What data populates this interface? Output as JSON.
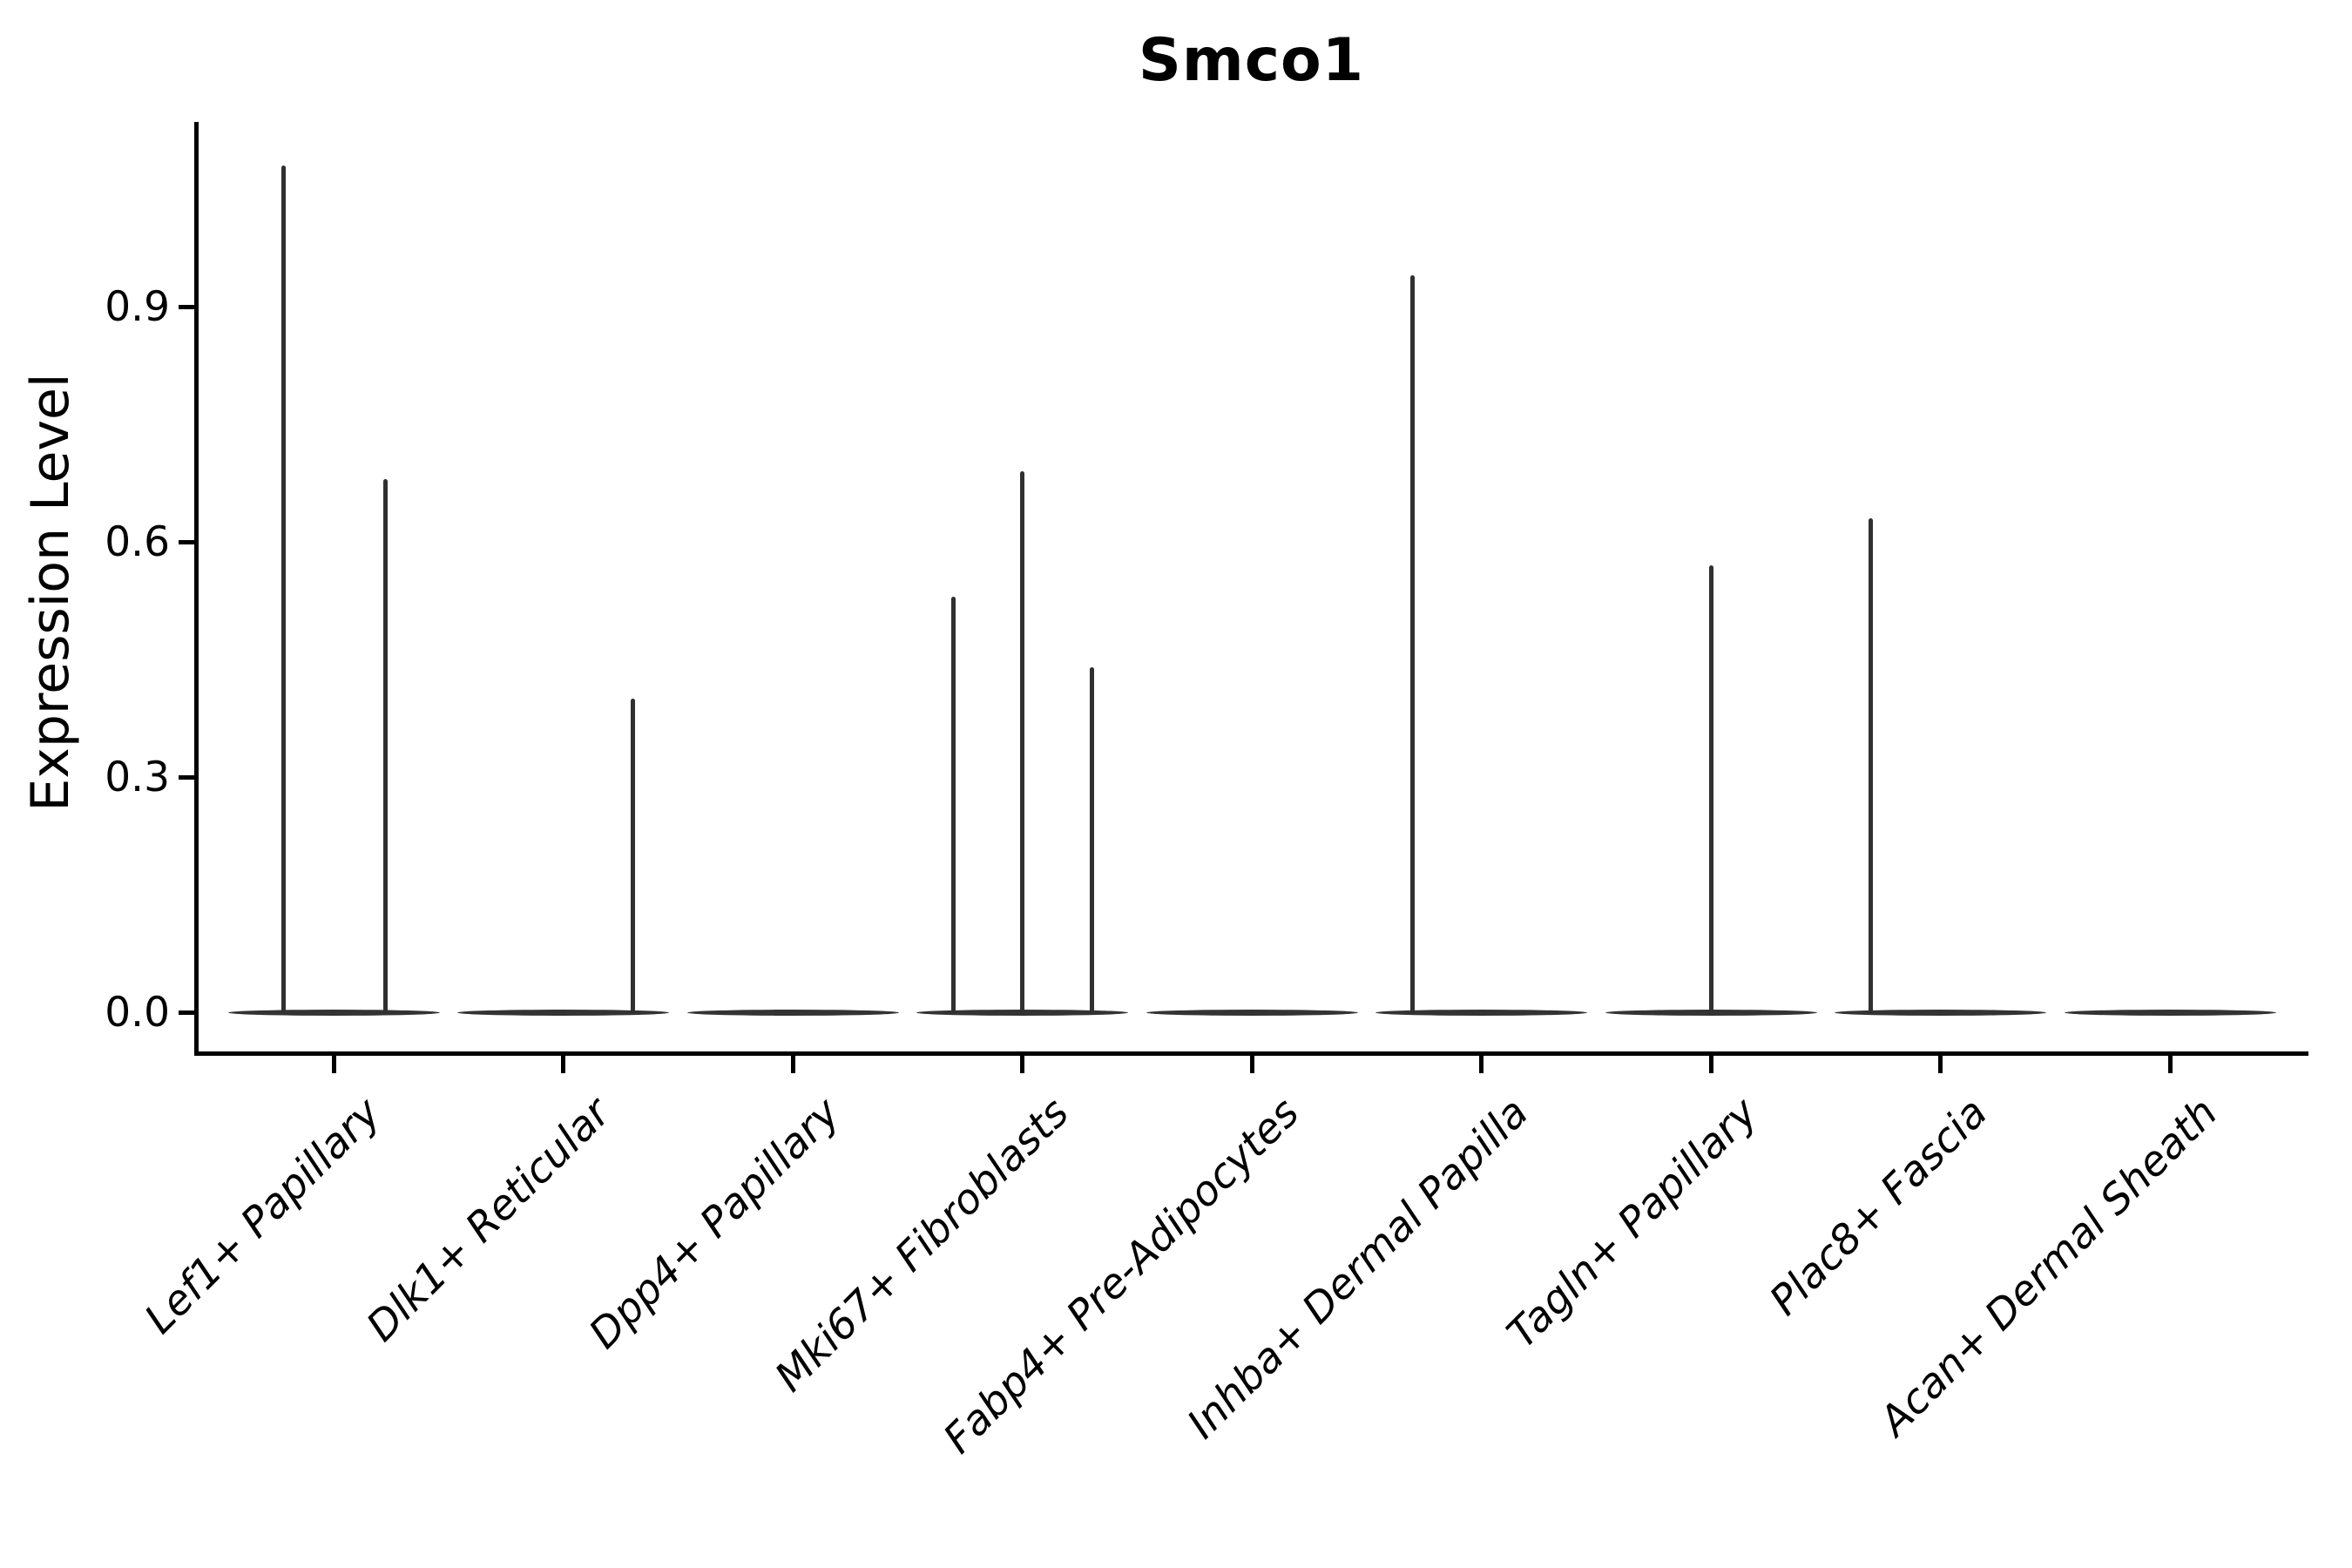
{
  "figure": {
    "title": "Smco1",
    "background": "#ffffff"
  },
  "y_axis": {
    "label": "Expression Level",
    "tick_labels": [
      "0.0",
      "0.3",
      "0.6",
      "0.9"
    ],
    "tick_values": [
      0.0,
      0.3,
      0.6,
      0.9
    ]
  },
  "x_axis": {
    "tick_labels": [
      "Lef1+ Papillary",
      "Dlk1+ Reticular",
      "Dpp4+ Papillary",
      "Mki67+ Fibroblasts",
      "Fabp4+ Pre-Adipocytes",
      "Inhba+ Dermal Papilla",
      "Tagln+ Papillary",
      "Plac8+ Fascia",
      "Acan+ Dermal Sheath"
    ]
  },
  "chart_data": {
    "type": "violin",
    "title": "Smco1",
    "xlabel": "",
    "ylabel": "Expression Level",
    "ylim": [
      -0.05,
      1.14
    ],
    "yticks": [
      0.0,
      0.3,
      0.6,
      0.9
    ],
    "grid": false,
    "legend_position": "none",
    "categories": [
      "Lef1+ Papillary",
      "Dlk1+ Reticular",
      "Dpp4+ Papillary",
      "Mki67+ Fibroblasts",
      "Fabp4+ Pre-Adipocytes",
      "Inhba+ Dermal Papilla",
      "Tagln+ Papillary",
      "Plac8+ Fascia",
      "Acan+ Dermal Sheath"
    ],
    "violins": [
      {
        "category": "Lef1+ Papillary",
        "body_value": 0.0,
        "needles": [
          {
            "offset_frac": -0.22,
            "value": 1.08
          },
          {
            "offset_frac": 0.227,
            "value": 0.68
          }
        ]
      },
      {
        "category": "Dlk1+ Reticular",
        "body_value": 0.0,
        "needles": [
          {
            "offset_frac": 0.305,
            "value": 0.4
          }
        ]
      },
      {
        "category": "Dpp4+ Papillary",
        "body_value": 0.0,
        "needles": []
      },
      {
        "category": "Mki67+ Fibroblasts",
        "body_value": 0.0,
        "needles": [
          {
            "offset_frac": -0.298,
            "value": 0.53
          },
          {
            "offset_frac": 0.0,
            "value": 0.69
          },
          {
            "offset_frac": 0.302,
            "value": 0.44
          }
        ]
      },
      {
        "category": "Fabp4+ Pre-Adipocytes",
        "body_value": 0.0,
        "needles": []
      },
      {
        "category": "Inhba+ Dermal Papilla",
        "body_value": 0.0,
        "needles": [
          {
            "offset_frac": -0.298,
            "value": 0.94
          }
        ]
      },
      {
        "category": "Tagln+ Papillary",
        "body_value": 0.0,
        "needles": [
          {
            "offset_frac": 0.0,
            "value": 0.57
          }
        ]
      },
      {
        "category": "Plac8+ Fascia",
        "body_value": 0.0,
        "needles": [
          {
            "offset_frac": -0.302,
            "value": 0.63
          }
        ]
      },
      {
        "category": "Acan+ Dermal Sheath",
        "body_value": 0.0,
        "needles": []
      }
    ]
  },
  "colors": {
    "violin": "#333333",
    "needle": "#303030",
    "axis": "#000000",
    "text": "#000000"
  }
}
